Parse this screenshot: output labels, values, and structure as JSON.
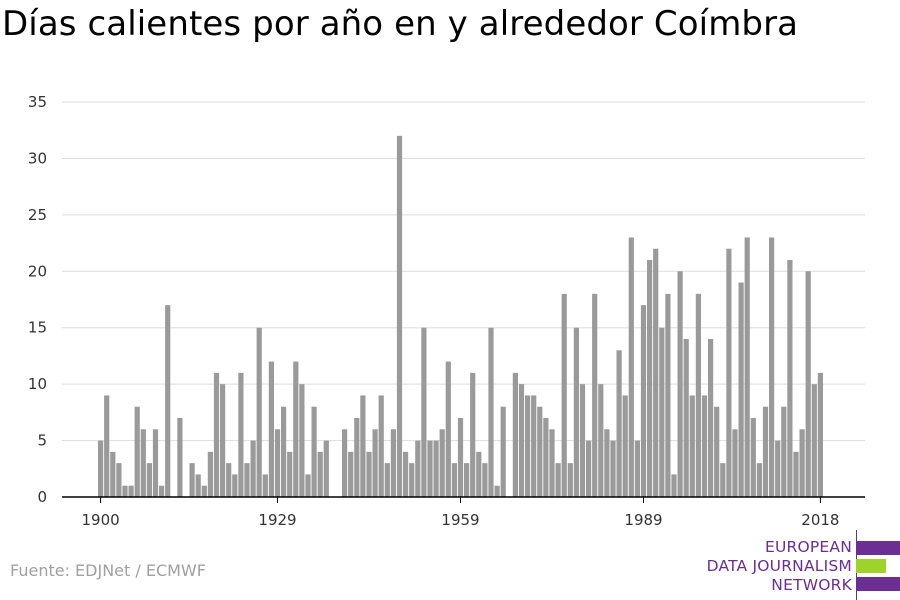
{
  "colors": {
    "bar": "#9a9a9a",
    "grid": "#dddddd",
    "axis": "#000000",
    "brand_purple": "#6b2e93",
    "brand_green": "#a0d22c",
    "source_text": "#a0a0a0"
  },
  "source": "Fuente: EDJNet / ECMWF",
  "logo": {
    "lines": [
      "EUROPEAN",
      "DATA JOURNALISM",
      "NETWORK"
    ]
  },
  "chart_data": {
    "type": "bar",
    "title": "Días calientes por año en y alrededor Coímbra",
    "xlabel": "",
    "ylabel": "",
    "ylim": [
      0,
      35
    ],
    "yticks": [
      0,
      5,
      10,
      15,
      20,
      25,
      30,
      35
    ],
    "xticks": [
      1900,
      1929,
      1959,
      1989,
      2018
    ],
    "grid": true,
    "legend": "none",
    "x": [
      1900,
      1901,
      1902,
      1903,
      1904,
      1905,
      1906,
      1907,
      1908,
      1909,
      1910,
      1911,
      1912,
      1913,
      1914,
      1915,
      1916,
      1917,
      1918,
      1919,
      1920,
      1921,
      1922,
      1923,
      1924,
      1925,
      1926,
      1927,
      1928,
      1929,
      1930,
      1931,
      1932,
      1933,
      1934,
      1935,
      1936,
      1937,
      1938,
      1939,
      1940,
      1941,
      1942,
      1943,
      1944,
      1945,
      1946,
      1947,
      1948,
      1949,
      1950,
      1951,
      1952,
      1953,
      1954,
      1955,
      1956,
      1957,
      1958,
      1959,
      1960,
      1961,
      1962,
      1963,
      1964,
      1965,
      1966,
      1967,
      1968,
      1969,
      1970,
      1971,
      1972,
      1973,
      1974,
      1975,
      1976,
      1977,
      1978,
      1979,
      1980,
      1981,
      1982,
      1983,
      1984,
      1985,
      1986,
      1987,
      1988,
      1989,
      1990,
      1991,
      1992,
      1993,
      1994,
      1995,
      1996,
      1997,
      1998,
      1999,
      2000,
      2001,
      2002,
      2003,
      2004,
      2005,
      2006,
      2007,
      2008,
      2009,
      2010,
      2011,
      2012,
      2013,
      2014,
      2015,
      2016,
      2017,
      2018
    ],
    "values": [
      5,
      9,
      4,
      3,
      1,
      1,
      8,
      6,
      3,
      6,
      1,
      17,
      0,
      7,
      0,
      3,
      2,
      1,
      4,
      11,
      10,
      3,
      2,
      11,
      3,
      5,
      15,
      2,
      12,
      6,
      8,
      4,
      12,
      10,
      2,
      8,
      4,
      5,
      0,
      0,
      6,
      4,
      7,
      9,
      4,
      6,
      9,
      3,
      6,
      32,
      4,
      3,
      5,
      15,
      5,
      5,
      6,
      12,
      3,
      7,
      3,
      11,
      4,
      3,
      15,
      1,
      8,
      0,
      11,
      10,
      9,
      9,
      8,
      7,
      6,
      3,
      18,
      3,
      15,
      10,
      5,
      18,
      10,
      6,
      5,
      13,
      9,
      23,
      5,
      17,
      21,
      22,
      15,
      18,
      2,
      20,
      14,
      9,
      18,
      9,
      14,
      8,
      3,
      22,
      6,
      19,
      23,
      7,
      3,
      8,
      23,
      5,
      8,
      21,
      4,
      6,
      20,
      10,
      11
    ]
  }
}
